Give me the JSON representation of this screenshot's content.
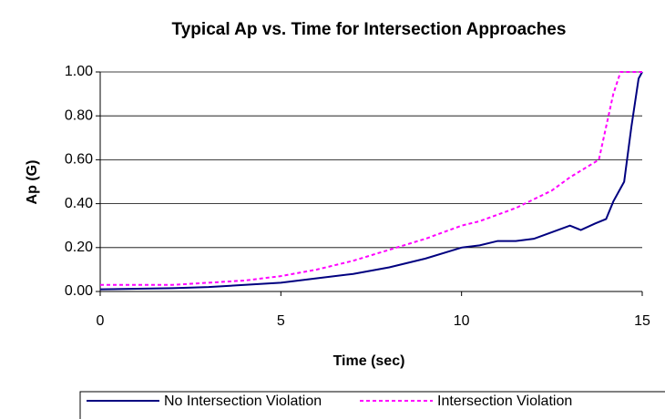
{
  "chart_data": {
    "type": "line",
    "title": "Typical Ap vs. Time for Intersection Approaches",
    "x_label": "Time (sec)",
    "y_label": "Ap (G)",
    "series": [
      {
        "name": "No Intersection Violation",
        "color": "#000080",
        "dash": false,
        "x": [
          0,
          2,
          3,
          4,
          5,
          6,
          7,
          8,
          9,
          10,
          10.5,
          11,
          11.5,
          12,
          12.5,
          13,
          13.3,
          13.7,
          14,
          14.2,
          14.5,
          14.7,
          14.9,
          15
        ],
        "values": [
          0.01,
          0.015,
          0.02,
          0.03,
          0.04,
          0.06,
          0.08,
          0.11,
          0.15,
          0.2,
          0.21,
          0.23,
          0.23,
          0.24,
          0.27,
          0.3,
          0.28,
          0.31,
          0.33,
          0.41,
          0.5,
          0.75,
          0.97,
          1.0
        ]
      },
      {
        "name": "Intersection Violation",
        "color": "#ff00ff",
        "dash": true,
        "x": [
          0,
          2,
          3,
          4,
          5,
          6,
          7,
          8,
          9,
          10,
          10.5,
          11,
          11.5,
          12,
          12.5,
          13,
          13.5,
          13.8,
          14,
          14.2,
          14.4,
          15
        ],
        "values": [
          0.03,
          0.03,
          0.04,
          0.05,
          0.07,
          0.1,
          0.14,
          0.19,
          0.24,
          0.3,
          0.32,
          0.35,
          0.38,
          0.42,
          0.46,
          0.52,
          0.57,
          0.6,
          0.75,
          0.9,
          1.0,
          1.0
        ]
      }
    ],
    "xlim": [
      0,
      15
    ],
    "xticks": [
      0,
      5,
      10,
      15
    ],
    "ylim": [
      0,
      1
    ],
    "yticks": [
      {
        "value": 0,
        "label": "0.00"
      },
      {
        "value": 0.2,
        "label": "0.20"
      },
      {
        "value": 0.4,
        "label": "0.40"
      },
      {
        "value": 0.6,
        "label": "0.60"
      },
      {
        "value": 0.8,
        "label": "0.80"
      },
      {
        "value": 1,
        "label": "1.00"
      }
    ],
    "grid": true,
    "legend": "bottom"
  }
}
